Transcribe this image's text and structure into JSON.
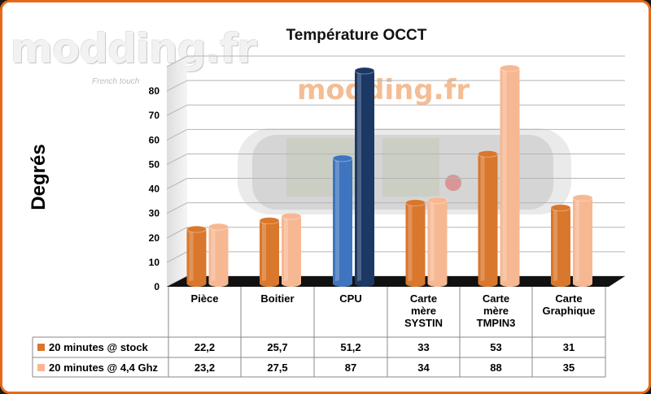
{
  "chart_data": {
    "type": "bar",
    "title": "Température OCCT",
    "ylabel": "Degrés",
    "xlabel": "",
    "ylim": [
      0,
      90
    ],
    "yticks": [
      0,
      10,
      20,
      30,
      40,
      50,
      60,
      70,
      80
    ],
    "categories": [
      [
        "Pièce"
      ],
      [
        "Boitier"
      ],
      [
        "CPU"
      ],
      [
        "Carte",
        "mère",
        "SYSTIN"
      ],
      [
        "Carte",
        "mère",
        "TMPIN3"
      ],
      [
        "Carte",
        "Graphique"
      ]
    ],
    "series": [
      {
        "name": "20 minutes @ stock",
        "values": [
          22.2,
          25.7,
          51.2,
          33,
          53,
          31
        ],
        "labels": [
          "22,2",
          "25,7",
          "51,2",
          "33",
          "53",
          "31"
        ],
        "color": "#d9772c",
        "cpu_color": "#3f74bf"
      },
      {
        "name": "20 minutes @ 4,4 Ghz",
        "values": [
          23.2,
          27.5,
          87,
          34,
          88,
          35
        ],
        "labels": [
          "23,2",
          "27,5",
          "87",
          "34",
          "88",
          "35"
        ],
        "color": "#f6b892",
        "cpu_color": "#1c3864"
      }
    ],
    "legend": "table-below"
  },
  "watermark": {
    "brand": "modding.fr",
    "tagline": "French touch"
  }
}
